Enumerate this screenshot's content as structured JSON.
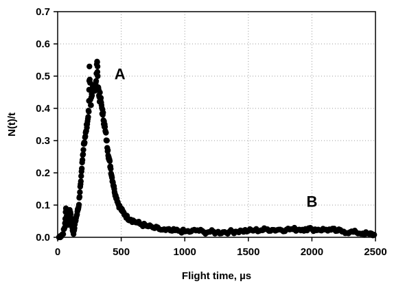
{
  "chart_data": {
    "type": "scatter",
    "title": "",
    "xlabel": "Flight time, µs",
    "ylabel": "N(t)/t",
    "xlim": [
      0,
      2500
    ],
    "ylim": [
      0,
      0.7
    ],
    "x_ticks": [
      "0",
      "500",
      "1000",
      "1500",
      "2000",
      "2500"
    ],
    "y_ticks": [
      "0.0",
      "0.1",
      "0.2",
      "0.3",
      "0.4",
      "0.5",
      "0.6",
      "0.7"
    ],
    "grid": "dotted",
    "legend": "none",
    "marker_color": "#000000",
    "annotations": [
      {
        "text": "A",
        "x": 490,
        "y": 0.49
      },
      {
        "text": "B",
        "x": 2000,
        "y": 0.095
      }
    ],
    "series": [
      {
        "points": [
          [
            10,
            0.0
          ],
          [
            25,
            0.005
          ],
          [
            40,
            0.01
          ],
          [
            55,
            0.03
          ],
          [
            65,
            0.09
          ],
          [
            75,
            0.05
          ],
          [
            85,
            0.04
          ],
          [
            95,
            0.085
          ],
          [
            105,
            0.06
          ],
          [
            115,
            0.03
          ],
          [
            125,
            0.01
          ],
          [
            135,
            0.04
          ],
          [
            145,
            0.06
          ],
          [
            155,
            0.08
          ],
          [
            165,
            0.095
          ],
          [
            175,
            0.14
          ],
          [
            185,
            0.19
          ],
          [
            195,
            0.24
          ],
          [
            205,
            0.29
          ],
          [
            215,
            0.31
          ],
          [
            225,
            0.33
          ],
          [
            235,
            0.36
          ],
          [
            245,
            0.39
          ],
          [
            250,
            0.53
          ],
          [
            260,
            0.41
          ],
          [
            270,
            0.44
          ],
          [
            280,
            0.46
          ],
          [
            290,
            0.47
          ],
          [
            300,
            0.48
          ],
          [
            310,
            0.545
          ],
          [
            315,
            0.5
          ],
          [
            325,
            0.44
          ],
          [
            335,
            0.43
          ],
          [
            345,
            0.41
          ],
          [
            355,
            0.38
          ],
          [
            365,
            0.36
          ],
          [
            375,
            0.33
          ],
          [
            385,
            0.3
          ],
          [
            395,
            0.27
          ],
          [
            405,
            0.24
          ],
          [
            415,
            0.22
          ],
          [
            425,
            0.19
          ],
          [
            435,
            0.17
          ],
          [
            445,
            0.15
          ],
          [
            455,
            0.13
          ],
          [
            465,
            0.12
          ],
          [
            480,
            0.1
          ],
          [
            495,
            0.09
          ],
          [
            510,
            0.08
          ],
          [
            530,
            0.07
          ],
          [
            550,
            0.06
          ],
          [
            575,
            0.055
          ],
          [
            600,
            0.05
          ],
          [
            630,
            0.045
          ],
          [
            660,
            0.04
          ],
          [
            700,
            0.035
          ],
          [
            750,
            0.03
          ],
          [
            800,
            0.025
          ],
          [
            850,
            0.022
          ],
          [
            900,
            0.02
          ],
          [
            950,
            0.02
          ],
          [
            1000,
            0.018
          ],
          [
            1050,
            0.018
          ],
          [
            1100,
            0.022
          ],
          [
            1150,
            0.016
          ],
          [
            1200,
            0.017
          ],
          [
            1250,
            0.015
          ],
          [
            1300,
            0.016
          ],
          [
            1350,
            0.017
          ],
          [
            1400,
            0.018
          ],
          [
            1450,
            0.02
          ],
          [
            1500,
            0.02
          ],
          [
            1550,
            0.022
          ],
          [
            1600,
            0.022
          ],
          [
            1650,
            0.025
          ],
          [
            1700,
            0.023
          ],
          [
            1750,
            0.024
          ],
          [
            1800,
            0.024
          ],
          [
            1850,
            0.025
          ],
          [
            1900,
            0.024
          ],
          [
            1950,
            0.026
          ],
          [
            2000,
            0.025
          ],
          [
            2050,
            0.024
          ],
          [
            2100,
            0.024
          ],
          [
            2150,
            0.023
          ],
          [
            2200,
            0.02
          ],
          [
            2250,
            0.018
          ],
          [
            2300,
            0.016
          ],
          [
            2350,
            0.015
          ],
          [
            2400,
            0.012
          ],
          [
            2450,
            0.01
          ],
          [
            2490,
            0.008
          ]
        ]
      }
    ]
  }
}
